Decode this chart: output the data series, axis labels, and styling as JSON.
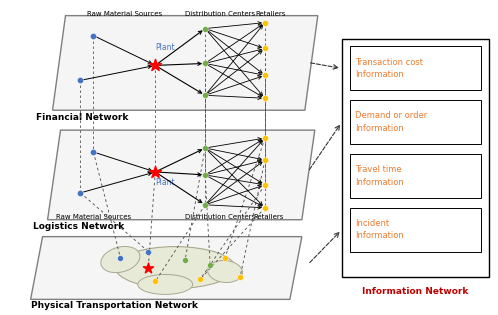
{
  "bg_color": "#ffffff",
  "layer1_label": "Financial Network",
  "layer2_label": "Logistics Network",
  "layer3_label": "Physical Transportation Network",
  "info_network_label": "Information Network",
  "info_boxes": [
    "Transaction cost\nInformation",
    "Demand or order\nInformation",
    "Travel time\nInformation",
    "Incident\nInformation"
  ],
  "node_colors": {
    "raw_material": "#4472c4",
    "plant": "#ff0000",
    "dist_centers": "#70ad47",
    "retailers": "#ffc000"
  },
  "info_box_text_color": "#ed7d31",
  "info_box_label_color": "#c00000",
  "para_face": "#f5f5f5",
  "para_edge": "#808080"
}
